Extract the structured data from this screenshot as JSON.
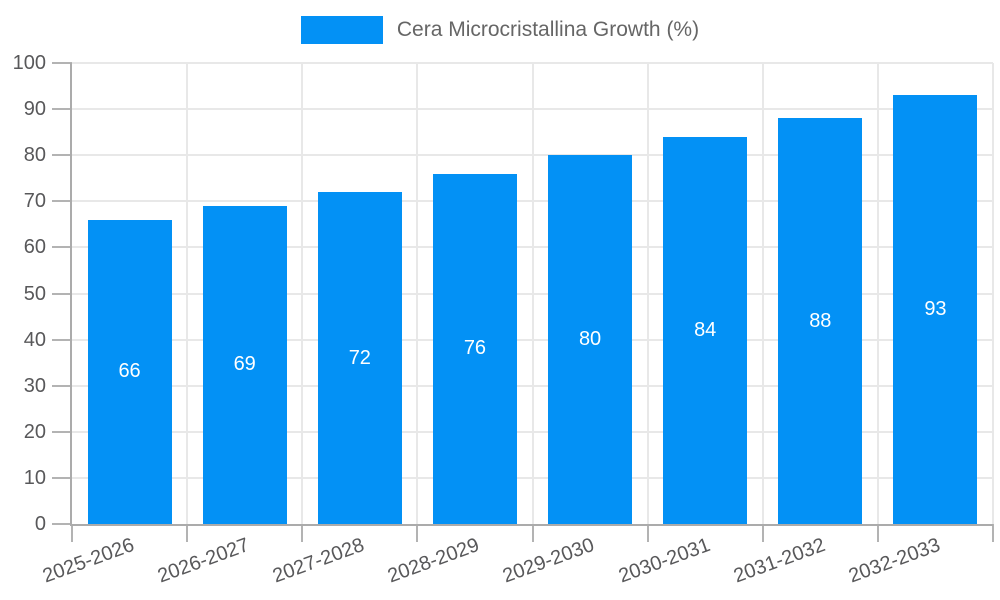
{
  "chart_data": {
    "type": "bar",
    "categories": [
      "2025-2026",
      "2026-2027",
      "2027-2028",
      "2028-2029",
      "2029-2030",
      "2030-2031",
      "2031-2032",
      "2032-2033"
    ],
    "series": [
      {
        "name": "Cera Microcristallina Growth (%)",
        "values": [
          66,
          69,
          72,
          76,
          80,
          84,
          88,
          93
        ]
      }
    ],
    "title": "",
    "xlabel": "",
    "ylabel": "",
    "ylim": [
      0,
      100
    ],
    "ytick_step": 10,
    "yticks": [
      0,
      10,
      20,
      30,
      40,
      50,
      60,
      70,
      80,
      90,
      100
    ],
    "grid": true,
    "legend_position": "top-center",
    "value_labels": "inside-center",
    "colors": {
      "bar": "#0391f5",
      "bar_value_text": "#ffffff",
      "axis": "#ababab",
      "tick": "#b3b3b3",
      "gridline": "#e8e8e8",
      "tick_label": "#58585a",
      "legend_text": "#666666",
      "background": "#ffffff"
    }
  }
}
